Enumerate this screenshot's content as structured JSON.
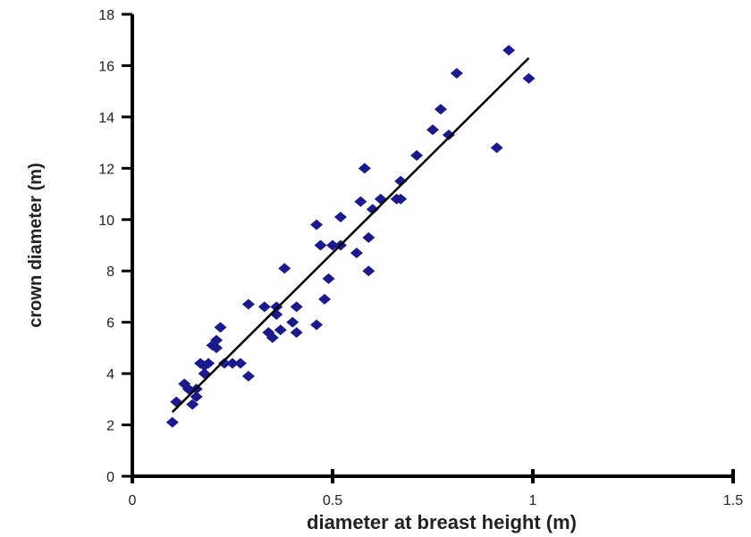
{
  "chart_data": {
    "type": "scatter",
    "title": "",
    "xlabel": "diameter at breast height (m)",
    "ylabel": "crown diameter (m)",
    "xlim": [
      0,
      1.5
    ],
    "ylim": [
      0,
      18
    ],
    "xticks": [
      0,
      0.5,
      1,
      1.5
    ],
    "xtick_labels": [
      "0",
      "0.5",
      "1",
      "1.5"
    ],
    "yticks": [
      0,
      2,
      4,
      6,
      8,
      10,
      12,
      14,
      16,
      18
    ],
    "ytick_labels": [
      "0",
      "2",
      "4",
      "6",
      "8",
      "10",
      "12",
      "14",
      "16",
      "18"
    ],
    "grid": false,
    "marker": "diamond",
    "marker_color": "#1a1a8c",
    "points": [
      {
        "x": 0.1,
        "y": 2.1
      },
      {
        "x": 0.11,
        "y": 2.9
      },
      {
        "x": 0.13,
        "y": 3.6
      },
      {
        "x": 0.14,
        "y": 3.4
      },
      {
        "x": 0.15,
        "y": 2.8
      },
      {
        "x": 0.16,
        "y": 3.1
      },
      {
        "x": 0.16,
        "y": 3.4
      },
      {
        "x": 0.17,
        "y": 4.4
      },
      {
        "x": 0.18,
        "y": 4.0
      },
      {
        "x": 0.18,
        "y": 4.3
      },
      {
        "x": 0.19,
        "y": 4.4
      },
      {
        "x": 0.2,
        "y": 5.1
      },
      {
        "x": 0.21,
        "y": 5.0
      },
      {
        "x": 0.21,
        "y": 5.3
      },
      {
        "x": 0.22,
        "y": 5.8
      },
      {
        "x": 0.23,
        "y": 4.4
      },
      {
        "x": 0.25,
        "y": 4.4
      },
      {
        "x": 0.27,
        "y": 4.4
      },
      {
        "x": 0.29,
        "y": 3.9
      },
      {
        "x": 0.29,
        "y": 6.7
      },
      {
        "x": 0.33,
        "y": 6.6
      },
      {
        "x": 0.34,
        "y": 5.6
      },
      {
        "x": 0.35,
        "y": 5.4
      },
      {
        "x": 0.36,
        "y": 6.3
      },
      {
        "x": 0.36,
        "y": 6.6
      },
      {
        "x": 0.37,
        "y": 5.7
      },
      {
        "x": 0.38,
        "y": 8.1
      },
      {
        "x": 0.4,
        "y": 6.0
      },
      {
        "x": 0.41,
        "y": 5.6
      },
      {
        "x": 0.41,
        "y": 6.6
      },
      {
        "x": 0.46,
        "y": 5.9
      },
      {
        "x": 0.46,
        "y": 9.8
      },
      {
        "x": 0.47,
        "y": 9.0
      },
      {
        "x": 0.48,
        "y": 6.9
      },
      {
        "x": 0.49,
        "y": 7.7
      },
      {
        "x": 0.5,
        "y": 9.0
      },
      {
        "x": 0.52,
        "y": 9.0
      },
      {
        "x": 0.52,
        "y": 10.1
      },
      {
        "x": 0.56,
        "y": 8.7
      },
      {
        "x": 0.57,
        "y": 10.7
      },
      {
        "x": 0.58,
        "y": 12.0
      },
      {
        "x": 0.59,
        "y": 9.3
      },
      {
        "x": 0.59,
        "y": 8.0
      },
      {
        "x": 0.6,
        "y": 10.4
      },
      {
        "x": 0.62,
        "y": 10.8
      },
      {
        "x": 0.66,
        "y": 10.8
      },
      {
        "x": 0.67,
        "y": 11.5
      },
      {
        "x": 0.67,
        "y": 10.8
      },
      {
        "x": 0.71,
        "y": 12.5
      },
      {
        "x": 0.75,
        "y": 13.5
      },
      {
        "x": 0.77,
        "y": 14.3
      },
      {
        "x": 0.79,
        "y": 13.3
      },
      {
        "x": 0.81,
        "y": 15.7
      },
      {
        "x": 0.91,
        "y": 12.8
      },
      {
        "x": 0.94,
        "y": 16.6
      },
      {
        "x": 0.99,
        "y": 15.5
      }
    ],
    "fit_line": {
      "x": [
        0.1,
        0.99
      ],
      "y": [
        2.5,
        16.3
      ],
      "color": "#000000"
    }
  }
}
